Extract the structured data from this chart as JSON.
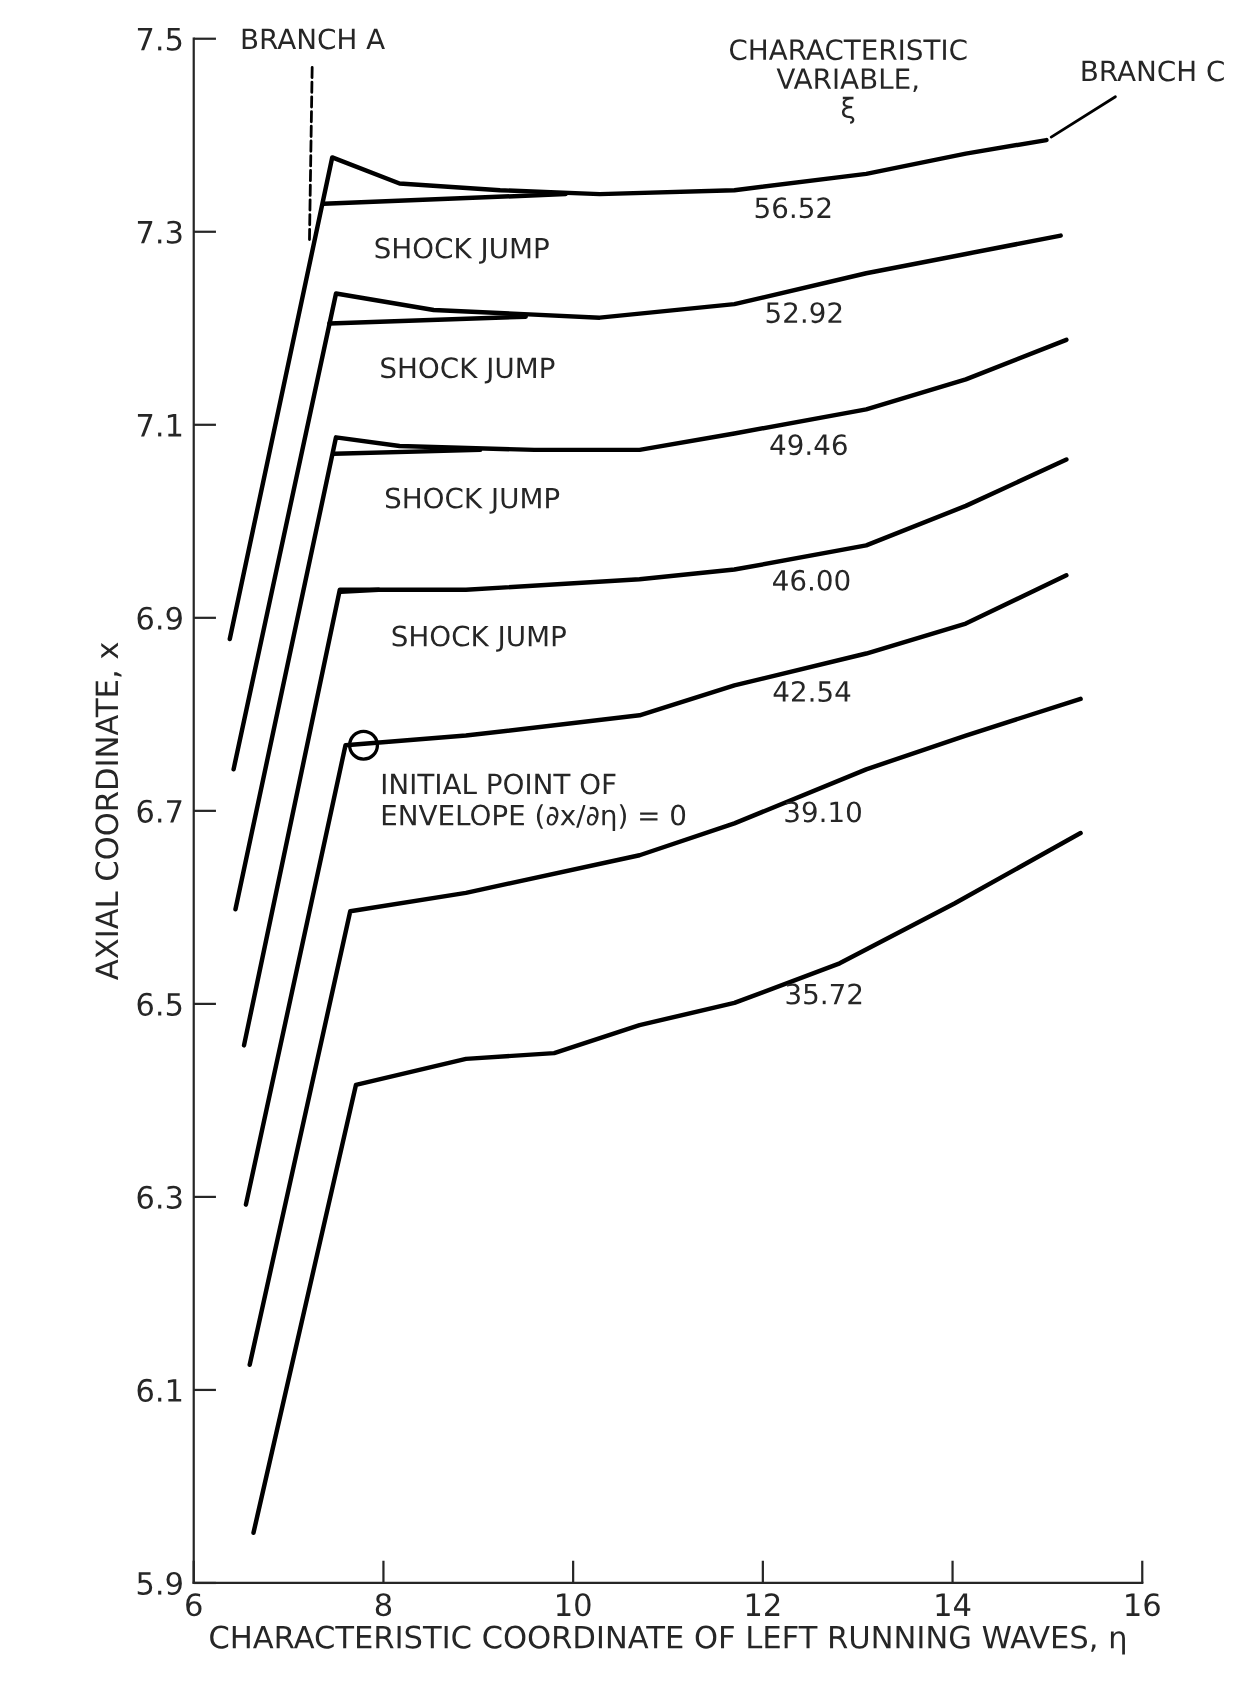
{
  "chart_data": {
    "type": "line",
    "xlabel": "CHARACTERISTIC COORDINATE OF LEFT RUNNING WAVES, η",
    "ylabel": "AXIAL COORDINATE, x",
    "legend_title": "CHARACTERISTIC\nVARIABLE,\nξ",
    "xlim": [
      6,
      16
    ],
    "ylim": [
      5.9,
      7.5
    ],
    "xticks": [
      6,
      8,
      10,
      12,
      14,
      16
    ],
    "yticks": [
      5.9,
      6.1,
      6.3,
      6.5,
      6.7,
      6.9,
      7.1,
      7.3,
      7.5
    ],
    "grid": false,
    "legend": false,
    "marker": "none",
    "line_style": "solid",
    "series": [
      {
        "name": "56.52",
        "color": "#000000",
        "x": [
          6.38,
          7.46,
          8.17,
          9.23,
          10.28,
          11.7,
          13.09,
          14.14,
          14.99
        ],
        "values": [
          6.878,
          7.377,
          7.35,
          7.343,
          7.339,
          7.343,
          7.36,
          7.381,
          7.395
        ]
      },
      {
        "name": "52.92",
        "color": "#000000",
        "x": [
          6.42,
          7.5,
          8.53,
          10.28,
          11.7,
          13.09,
          14.14,
          15.14
        ],
        "values": [
          6.743,
          7.236,
          7.219,
          7.211,
          7.225,
          7.257,
          7.277,
          7.296
        ]
      },
      {
        "name": "49.46",
        "color": "#000000",
        "x": [
          6.44,
          7.5,
          8.17,
          9.59,
          10.7,
          11.7,
          13.09,
          14.14,
          15.2
        ],
        "values": [
          6.598,
          7.087,
          7.078,
          7.074,
          7.074,
          7.091,
          7.116,
          7.147,
          7.188
        ]
      },
      {
        "name": "46.00",
        "color": "#000000",
        "x": [
          6.53,
          7.54,
          8.87,
          10.7,
          11.7,
          13.09,
          14.14,
          15.2
        ],
        "values": [
          6.457,
          6.929,
          6.929,
          6.94,
          6.95,
          6.975,
          7.016,
          7.064
        ]
      },
      {
        "name": "42.54",
        "color": "#000000",
        "x": [
          6.55,
          7.6,
          8.87,
          10.7,
          11.7,
          13.09,
          14.14,
          15.2
        ],
        "values": [
          6.292,
          6.768,
          6.778,
          6.799,
          6.83,
          6.863,
          6.894,
          6.944
        ]
      },
      {
        "name": "39.10",
        "color": "#000000",
        "x": [
          6.59,
          7.65,
          8.87,
          10.7,
          11.7,
          13.09,
          14.14,
          15.35
        ],
        "values": [
          6.126,
          6.596,
          6.615,
          6.654,
          6.687,
          6.743,
          6.778,
          6.816
        ]
      },
      {
        "name": "35.72",
        "color": "#000000",
        "x": [
          6.63,
          7.71,
          8.87,
          9.8,
          10.7,
          11.7,
          12.81,
          14.02,
          15.35
        ],
        "values": [
          5.952,
          6.416,
          6.443,
          6.449,
          6.478,
          6.501,
          6.542,
          6.604,
          6.677
        ]
      },
      {
        "color": "#000000",
        "x": [
          7.37,
          9.92
        ],
        "values": [
          7.329,
          7.339
        ]
      },
      {
        "color": "#000000",
        "x": [
          7.43,
          9.5
        ],
        "values": [
          7.205,
          7.212
        ]
      },
      {
        "color": "#000000",
        "x": [
          7.48,
          9.02
        ],
        "values": [
          7.07,
          7.074
        ]
      },
      {
        "color": "#000000",
        "x": [
          7.55,
          7.95
        ],
        "values": [
          6.927,
          6.929
        ]
      }
    ],
    "annotations": [
      {
        "text": "BRANCH A",
        "x": 7.22,
        "y": 7.29
      },
      {
        "text": "BRANCH C",
        "x": 14.99,
        "y": 7.395
      },
      {
        "text": "SHOCK JUMP",
        "x": 7.37,
        "y": 7.329
      },
      {
        "text": "SHOCK JUMP",
        "x": 7.43,
        "y": 7.205
      },
      {
        "text": "SHOCK JUMP",
        "x": 7.48,
        "y": 7.07
      },
      {
        "text": "SHOCK JUMP",
        "x": 7.55,
        "y": 6.927
      },
      {
        "text": "INITIAL POINT OF\nENVELOPE (∂x/∂η) = 0",
        "x": 7.79,
        "y": 6.768
      }
    ]
  }
}
